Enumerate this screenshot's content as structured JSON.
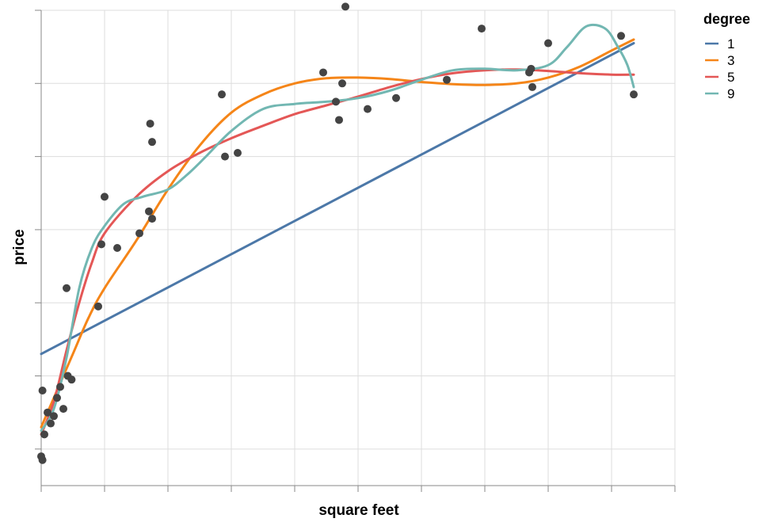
{
  "chart_data": {
    "type": "scatter",
    "xlabel": "square feet",
    "ylabel": "price",
    "grid": true,
    "legend_placement": "top-right",
    "legend_title": "degree",
    "xlim": [
      0,
      10
    ],
    "ylim": [
      0,
      6.5
    ],
    "points": [
      {
        "x": 0.0,
        "y": 0.4
      },
      {
        "x": 0.02,
        "y": 0.35
      },
      {
        "x": 0.02,
        "y": 1.3
      },
      {
        "x": 0.05,
        "y": 0.7
      },
      {
        "x": 0.1,
        "y": 1.0
      },
      {
        "x": 0.15,
        "y": 0.85
      },
      {
        "x": 0.2,
        "y": 0.95
      },
      {
        "x": 0.25,
        "y": 1.2
      },
      {
        "x": 0.3,
        "y": 1.35
      },
      {
        "x": 0.35,
        "y": 1.05
      },
      {
        "x": 0.42,
        "y": 1.5
      },
      {
        "x": 0.48,
        "y": 1.45
      },
      {
        "x": 0.4,
        "y": 2.7
      },
      {
        "x": 0.9,
        "y": 2.45
      },
      {
        "x": 0.95,
        "y": 3.3
      },
      {
        "x": 1.0,
        "y": 3.95
      },
      {
        "x": 1.2,
        "y": 3.25
      },
      {
        "x": 1.55,
        "y": 3.45
      },
      {
        "x": 1.7,
        "y": 3.75
      },
      {
        "x": 1.72,
        "y": 4.95
      },
      {
        "x": 1.75,
        "y": 4.7
      },
      {
        "x": 1.75,
        "y": 3.65
      },
      {
        "x": 2.85,
        "y": 5.35
      },
      {
        "x": 2.9,
        "y": 4.5
      },
      {
        "x": 3.1,
        "y": 4.55
      },
      {
        "x": 4.45,
        "y": 5.65
      },
      {
        "x": 4.65,
        "y": 5.25
      },
      {
        "x": 4.7,
        "y": 5.0
      },
      {
        "x": 4.75,
        "y": 5.5
      },
      {
        "x": 4.8,
        "y": 6.55
      },
      {
        "x": 5.15,
        "y": 5.15
      },
      {
        "x": 5.6,
        "y": 5.3
      },
      {
        "x": 6.4,
        "y": 5.55
      },
      {
        "x": 6.95,
        "y": 6.25
      },
      {
        "x": 7.7,
        "y": 5.65
      },
      {
        "x": 7.73,
        "y": 5.7
      },
      {
        "x": 7.75,
        "y": 5.45
      },
      {
        "x": 8.0,
        "y": 6.05
      },
      {
        "x": 9.15,
        "y": 6.15
      },
      {
        "x": 9.35,
        "y": 5.35
      }
    ],
    "series": [
      {
        "name": "1",
        "color": "#4c78a8",
        "x": [
          0,
          9.35
        ],
        "y": [
          1.8,
          6.05
        ]
      },
      {
        "name": "3",
        "color": "#f58518",
        "x": [
          0,
          0.25,
          0.5,
          0.75,
          1.0,
          1.5,
          2.0,
          2.5,
          3.0,
          3.5,
          4.0,
          4.5,
          5.0,
          5.5,
          6.0,
          6.5,
          7.0,
          7.5,
          8.0,
          8.5,
          9.0,
          9.35
        ],
        "y": [
          0.8,
          1.3,
          1.8,
          2.3,
          2.7,
          3.35,
          4.05,
          4.65,
          5.1,
          5.35,
          5.5,
          5.57,
          5.58,
          5.56,
          5.52,
          5.49,
          5.48,
          5.5,
          5.58,
          5.73,
          5.95,
          6.1
        ]
      },
      {
        "name": "5",
        "color": "#e45756",
        "x": [
          0,
          0.2,
          0.4,
          0.6,
          0.8,
          1.0,
          1.5,
          2.0,
          2.5,
          3.0,
          3.5,
          4.0,
          4.5,
          5.0,
          5.5,
          6.0,
          6.5,
          7.0,
          7.5,
          8.0,
          8.5,
          9.0,
          9.35
        ],
        "y": [
          0.7,
          1.15,
          1.85,
          2.5,
          3.05,
          3.45,
          3.95,
          4.3,
          4.55,
          4.75,
          4.92,
          5.08,
          5.2,
          5.32,
          5.45,
          5.56,
          5.64,
          5.68,
          5.69,
          5.67,
          5.64,
          5.62,
          5.62
        ]
      },
      {
        "name": "9",
        "color": "#72b7b2",
        "x": [
          0,
          0.2,
          0.4,
          0.6,
          0.8,
          1.0,
          1.3,
          1.6,
          2.0,
          2.3,
          2.6,
          3.0,
          3.5,
          4.0,
          4.5,
          5.0,
          5.5,
          6.0,
          6.5,
          7.0,
          7.5,
          8.0,
          8.3,
          8.6,
          8.9,
          9.1,
          9.25,
          9.35
        ],
        "y": [
          0.75,
          1.05,
          1.75,
          2.7,
          3.25,
          3.55,
          3.85,
          3.95,
          4.05,
          4.25,
          4.5,
          4.85,
          5.15,
          5.22,
          5.25,
          5.3,
          5.4,
          5.55,
          5.68,
          5.7,
          5.68,
          5.75,
          6.0,
          6.28,
          6.25,
          6.0,
          5.75,
          5.45
        ]
      }
    ]
  }
}
